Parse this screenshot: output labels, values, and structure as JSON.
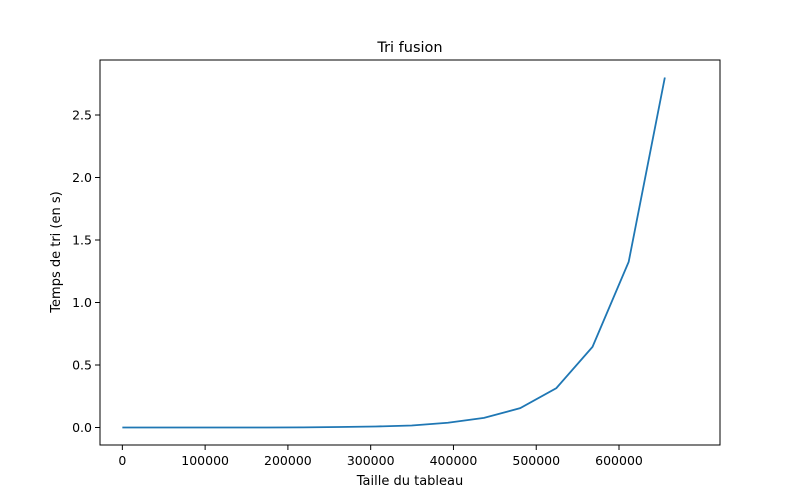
{
  "chart_data": {
    "type": "line",
    "title": "Tri fusion",
    "xlabel": "Taille du tableau",
    "ylabel": "Temps de tri (en s)",
    "xlim": [
      -27000,
      722000
    ],
    "ylim": [
      -0.14,
      2.94
    ],
    "xticks": [
      0,
      100000,
      200000,
      300000,
      400000,
      500000,
      600000
    ],
    "xtick_labels": [
      "0",
      "100000",
      "200000",
      "300000",
      "400000",
      "500000",
      "600000"
    ],
    "yticks": [
      0.0,
      0.5,
      1.0,
      1.5,
      2.0,
      2.5
    ],
    "ytick_labels": [
      "0.0",
      "0.5",
      "1.0",
      "1.5",
      "2.0",
      "2.5"
    ],
    "grid": false,
    "series": [
      {
        "color": "#1f77b4",
        "x": [
          0,
          43690,
          87381,
          131072,
          174762,
          218453,
          262144,
          305834,
          349525,
          393216,
          436906,
          480597,
          524288,
          567978,
          611669,
          655360
        ],
        "y": [
          0.0,
          0.0,
          0.0,
          0.0,
          0.0,
          0.001,
          0.004,
          0.008,
          0.016,
          0.038,
          0.077,
          0.155,
          0.315,
          0.645,
          1.325,
          2.8
        ]
      }
    ]
  }
}
